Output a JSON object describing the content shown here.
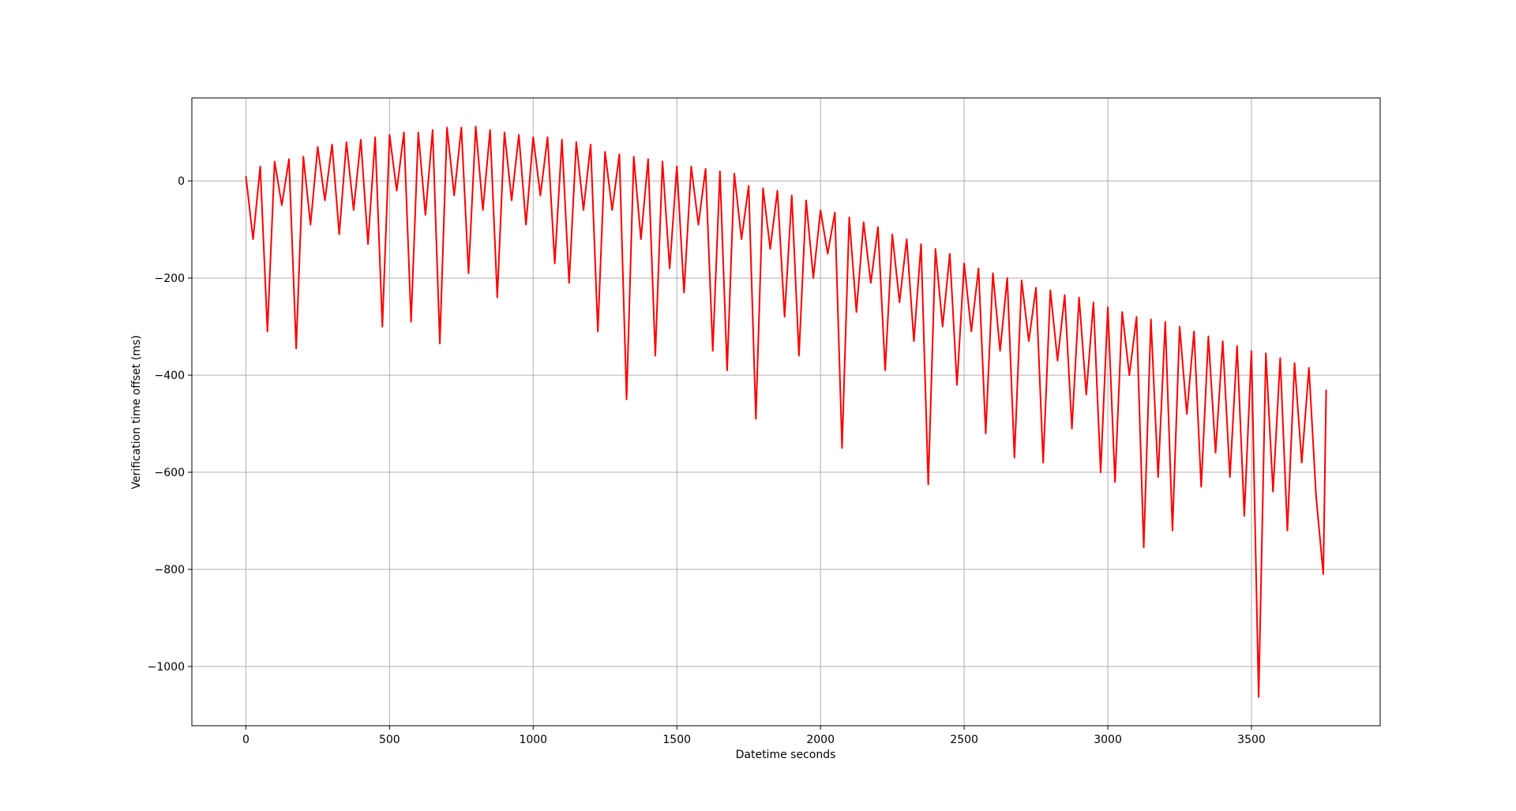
{
  "chart_data": {
    "type": "line",
    "xlabel": "Datetime seconds",
    "ylabel": "Verification time offset (ms)",
    "color": "#ff0000",
    "grid": true,
    "xlim": [
      -188,
      3948
    ],
    "ylim": [
      -1122,
      171
    ],
    "xticks": [
      0,
      500,
      1000,
      1500,
      2000,
      2500,
      3000,
      3500
    ],
    "yticks": [
      {
        "value": -1000,
        "label": "−1000"
      },
      {
        "value": -800,
        "label": "−800"
      },
      {
        "value": -600,
        "label": "−600"
      },
      {
        "value": -400,
        "label": "−400"
      },
      {
        "value": -200,
        "label": "−200"
      },
      0
    ],
    "x": [
      0,
      25,
      50,
      75,
      100,
      125,
      150,
      175,
      200,
      225,
      250,
      275,
      300,
      325,
      350,
      375,
      400,
      425,
      450,
      475,
      500,
      525,
      550,
      575,
      600,
      625,
      650,
      675,
      700,
      725,
      750,
      775,
      800,
      825,
      850,
      875,
      900,
      925,
      950,
      975,
      1000,
      1025,
      1050,
      1075,
      1100,
      1125,
      1150,
      1175,
      1200,
      1225,
      1250,
      1275,
      1300,
      1325,
      1350,
      1375,
      1400,
      1425,
      1450,
      1475,
      1500,
      1525,
      1550,
      1575,
      1600,
      1625,
      1650,
      1675,
      1700,
      1725,
      1750,
      1775,
      1800,
      1825,
      1850,
      1875,
      1900,
      1925,
      1950,
      1975,
      2000,
      2025,
      2050,
      2075,
      2100,
      2125,
      2150,
      2175,
      2200,
      2225,
      2250,
      2275,
      2300,
      2325,
      2350,
      2375,
      2400,
      2425,
      2450,
      2475,
      2500,
      2525,
      2550,
      2575,
      2600,
      2625,
      2650,
      2675,
      2700,
      2725,
      2750,
      2775,
      2800,
      2825,
      2850,
      2875,
      2900,
      2925,
      2950,
      2975,
      3000,
      3025,
      3050,
      3075,
      3100,
      3125,
      3150,
      3175,
      3200,
      3225,
      3250,
      3275,
      3300,
      3325,
      3350,
      3375,
      3400,
      3425,
      3450,
      3475,
      3500,
      3525,
      3550,
      3575,
      3600,
      3625,
      3650,
      3675,
      3700,
      3725,
      3750,
      3760
    ],
    "values": [
      10,
      -120,
      30,
      -310,
      40,
      -50,
      45,
      -345,
      50,
      -90,
      70,
      -40,
      75,
      -110,
      80,
      -60,
      85,
      -130,
      90,
      -300,
      95,
      -20,
      100,
      -290,
      100,
      -70,
      105,
      -335,
      110,
      -30,
      110,
      -190,
      112,
      -60,
      105,
      -240,
      100,
      -40,
      95,
      -90,
      90,
      -30,
      90,
      -170,
      85,
      -210,
      80,
      -60,
      75,
      -310,
      60,
      -60,
      55,
      -450,
      50,
      -120,
      45,
      -360,
      40,
      -180,
      30,
      -230,
      30,
      -90,
      25,
      -350,
      20,
      -390,
      15,
      -120,
      -10,
      -490,
      -15,
      -140,
      -20,
      -280,
      -30,
      -360,
      -40,
      -200,
      -60,
      -150,
      -65,
      -550,
      -75,
      -270,
      -85,
      -210,
      -95,
      -390,
      -110,
      -250,
      -120,
      -330,
      -130,
      -625,
      -140,
      -300,
      -150,
      -420,
      -170,
      -310,
      -180,
      -520,
      -190,
      -350,
      -200,
      -570,
      -205,
      -330,
      -220,
      -580,
      -225,
      -370,
      -235,
      -510,
      -240,
      -440,
      -250,
      -600,
      -260,
      -620,
      -270,
      -400,
      -280,
      -755,
      -285,
      -610,
      -290,
      -720,
      -300,
      -480,
      -310,
      -630,
      -320,
      -560,
      -330,
      -610,
      -340,
      -690,
      -350,
      -1063,
      -355,
      -640,
      -365,
      -720,
      -375,
      -580,
      -385,
      -650,
      -810,
      -430
    ]
  }
}
